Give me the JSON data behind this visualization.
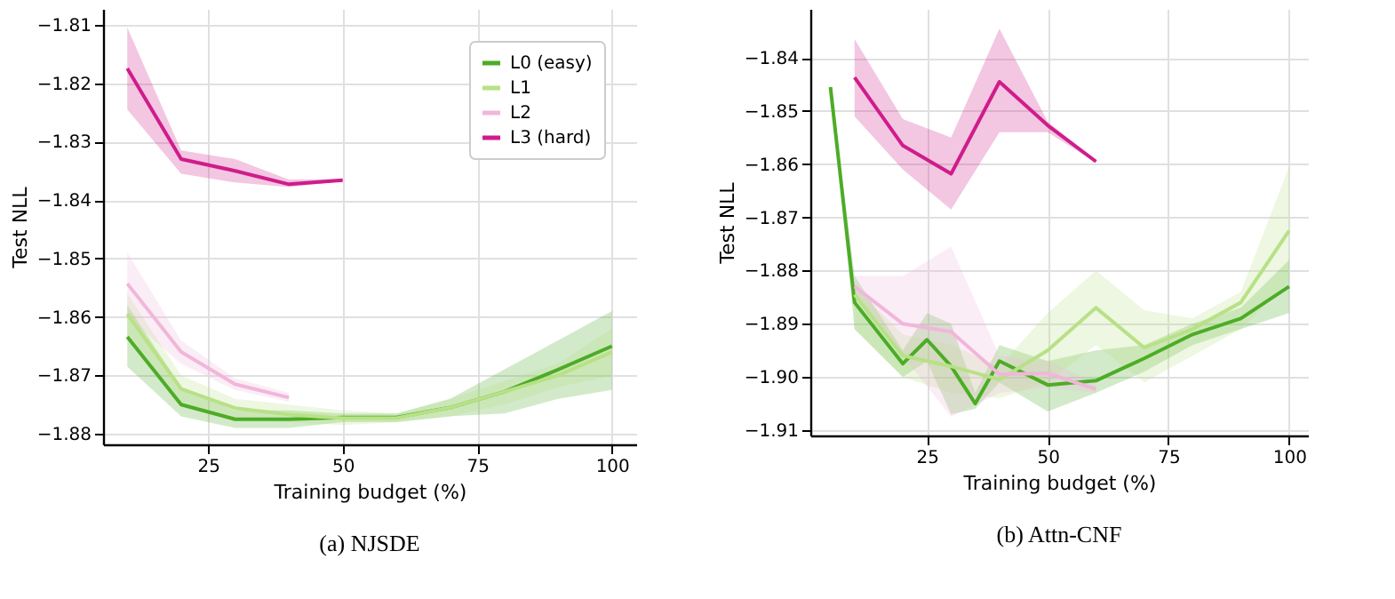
{
  "chart_data": [
    {
      "type": "line",
      "title": "(a) NJSDE",
      "xlabel": "Training budget (%)",
      "ylabel": "Test NLL",
      "xlim": [
        5.5,
        104.5
      ],
      "xticks": [
        25,
        50,
        75,
        100
      ],
      "ylim": [
        -1.8818,
        -1.8073
      ],
      "yticks": [
        -1.88,
        -1.87,
        -1.86,
        -1.85,
        -1.84,
        -1.83,
        -1.82,
        -1.81
      ],
      "grid": true,
      "legend": "top right",
      "series": [
        {
          "name": "L0 (easy)",
          "color": "#4dac26",
          "x": [
            10,
            20,
            30,
            40,
            50,
            60,
            70,
            80,
            90,
            100
          ],
          "values": [
            -1.8634,
            -1.875,
            -1.8775,
            -1.8775,
            -1.8772,
            -1.8772,
            -1.8755,
            -1.8728,
            -1.869,
            -1.865
          ],
          "lower": [
            -1.8685,
            -1.877,
            -1.879,
            -1.879,
            -1.878,
            -1.878,
            -1.877,
            -1.8765,
            -1.874,
            -1.8725
          ],
          "upper": [
            -1.858,
            -1.872,
            -1.876,
            -1.876,
            -1.8765,
            -1.8765,
            -1.874,
            -1.869,
            -1.864,
            -1.859
          ]
        },
        {
          "name": "L1",
          "color": "#b8e186",
          "x": [
            10,
            20,
            30,
            40,
            50,
            60,
            70,
            80,
            90,
            100
          ],
          "values": [
            -1.8595,
            -1.8723,
            -1.8756,
            -1.8767,
            -1.8773,
            -1.8773,
            -1.8755,
            -1.8728,
            -1.87,
            -1.866
          ],
          "lower": [
            -1.864,
            -1.875,
            -1.8775,
            -1.878,
            -1.8785,
            -1.878,
            -1.877,
            -1.875,
            -1.872,
            -1.87
          ],
          "upper": [
            -1.856,
            -1.87,
            -1.874,
            -1.875,
            -1.876,
            -1.8765,
            -1.874,
            -1.871,
            -1.868,
            -1.862
          ]
        },
        {
          "name": "L2",
          "color": "#f1b6da",
          "x": [
            10,
            20,
            30,
            40
          ],
          "values": [
            -1.8543,
            -1.866,
            -1.8715,
            -1.8738
          ],
          "lower": [
            -1.86,
            -1.868,
            -1.8725,
            -1.8745
          ],
          "upper": [
            -1.849,
            -1.864,
            -1.8705,
            -1.873
          ]
        },
        {
          "name": "L3 (hard)",
          "color": "#d01c8b",
          "x": [
            10,
            20,
            30,
            40,
            50
          ],
          "values": [
            -1.8175,
            -1.833,
            -1.835,
            -1.8373,
            -1.8366
          ],
          "lower": [
            -1.8245,
            -1.8355,
            -1.837,
            -1.8378,
            -1.8368
          ],
          "upper": [
            -1.8105,
            -1.8315,
            -1.833,
            -1.8365,
            -1.8364
          ]
        }
      ]
    },
    {
      "type": "line",
      "title": "(b) Attn-CNF",
      "xlabel": "Training budget (%)",
      "ylabel": "Test NLL",
      "xlim": [
        0.84,
        103.9
      ],
      "xticks": [
        25,
        50,
        75,
        100
      ],
      "ylim": [
        -1.911,
        -1.8308
      ],
      "yticks": [
        -1.91,
        {
          "value": -1.9,
          "label": "−1.90"
        },
        -1.89,
        -1.88,
        -1.87,
        -1.86,
        -1.85,
        -1.84
      ],
      "grid": true,
      "series": [
        {
          "color": "#4dac26",
          "x": [
            5,
            10,
            20,
            25,
            30,
            35,
            40,
            50,
            60,
            70,
            80,
            90,
            100
          ],
          "values": [
            -1.8455,
            -1.886,
            -1.8975,
            -1.893,
            -1.898,
            -1.905,
            -1.897,
            -1.9015,
            -1.9007,
            -1.8965,
            -1.892,
            -1.889,
            -1.883
          ],
          "lower": [
            -1.8455,
            -1.891,
            -1.9,
            -1.897,
            -1.907,
            -1.906,
            -1.901,
            -1.9065,
            -1.903,
            -1.899,
            -1.894,
            -1.891,
            -1.888
          ],
          "upper": [
            -1.8455,
            -1.881,
            -1.895,
            -1.888,
            -1.89,
            -1.903,
            -1.894,
            -1.897,
            -1.895,
            -1.894,
            -1.89,
            -1.887,
            -1.878
          ]
        },
        {
          "color": "#b8e186",
          "x": [
            10,
            20,
            30,
            40,
            50,
            60,
            70,
            80,
            90,
            100
          ],
          "values": [
            -1.8845,
            -1.896,
            -1.898,
            -1.9005,
            -1.895,
            -1.887,
            -1.8945,
            -1.891,
            -1.886,
            -1.8725
          ],
          "lower": [
            -1.891,
            -1.9,
            -1.903,
            -1.904,
            -1.901,
            -1.894,
            -1.901,
            -1.896,
            -1.891,
            -1.882
          ],
          "upper": [
            -1.883,
            -1.892,
            -1.894,
            -1.898,
            -1.888,
            -1.88,
            -1.8875,
            -1.889,
            -1.884,
            -1.8605
          ]
        },
        {
          "color": "#f1b6da",
          "x": [
            10,
            20,
            30,
            40,
            50,
            60
          ],
          "values": [
            -1.883,
            -1.89,
            -1.8915,
            -1.8995,
            -1.8993,
            -1.9023
          ],
          "lower": [
            -1.885,
            -1.896,
            -1.9075,
            -1.903,
            -1.902,
            -1.903
          ],
          "upper": [
            -1.881,
            -1.881,
            -1.8755,
            -1.896,
            -1.897,
            -1.901
          ]
        },
        {
          "color": "#d01c8b",
          "x": [
            10,
            20,
            30,
            40,
            50,
            60
          ],
          "values": [
            -1.8437,
            -1.8565,
            -1.8618,
            -1.8445,
            -1.8527,
            -1.8595
          ],
          "lower": [
            -1.851,
            -1.861,
            -1.8685,
            -1.854,
            -1.854,
            -1.8597
          ],
          "upper": [
            -1.8365,
            -1.8515,
            -1.855,
            -1.8345,
            -1.852,
            -1.8593
          ]
        }
      ]
    }
  ]
}
